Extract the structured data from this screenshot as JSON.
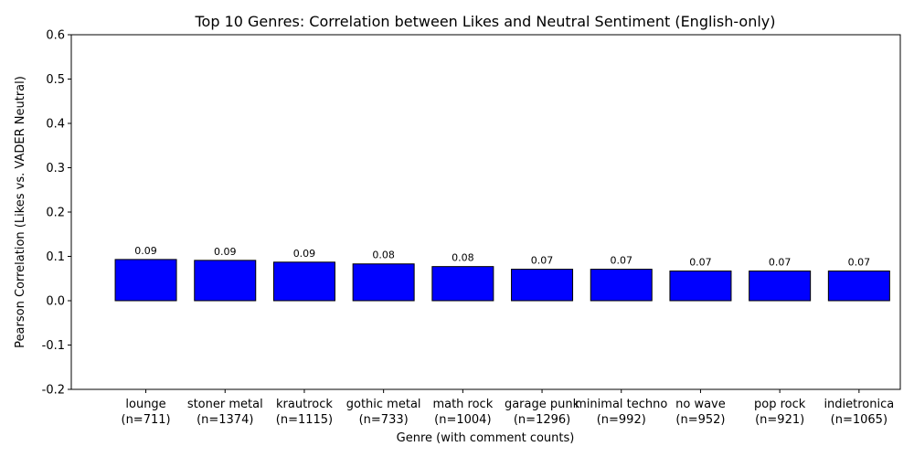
{
  "chart_data": {
    "type": "bar",
    "title": "Top 10 Genres: Correlation between Likes and Neutral Sentiment (English-only)",
    "xlabel": "Genre (with comment counts)",
    "ylabel": "Pearson Correlation (Likes vs. VADER Neutral)",
    "ylim": [
      -0.2,
      0.6
    ],
    "yticks": [
      "-0.2",
      "-0.1",
      "0.0",
      "0.1",
      "0.2",
      "0.3",
      "0.4",
      "0.5",
      "0.6"
    ],
    "categories": [
      {
        "name": "lounge",
        "count": "(n=711)"
      },
      {
        "name": "stoner metal",
        "count": "(n=1374)"
      },
      {
        "name": "krautrock",
        "count": "(n=1115)"
      },
      {
        "name": "gothic metal",
        "count": "(n=733)"
      },
      {
        "name": "math rock",
        "count": "(n=1004)"
      },
      {
        "name": "garage punk",
        "count": "(n=1296)"
      },
      {
        "name": "minimal techno",
        "count": "(n=992)"
      },
      {
        "name": "no wave",
        "count": "(n=952)"
      },
      {
        "name": "pop rock",
        "count": "(n=921)"
      },
      {
        "name": "indietronica",
        "count": "(n=1065)"
      }
    ],
    "values": [
      0.093,
      0.091,
      0.087,
      0.083,
      0.077,
      0.071,
      0.071,
      0.067,
      0.067,
      0.067
    ],
    "value_labels": [
      "0.09",
      "0.09",
      "0.09",
      "0.08",
      "0.08",
      "0.07",
      "0.07",
      "0.07",
      "0.07",
      "0.07"
    ],
    "bar_color": "#0000ff",
    "bar_edge_color": "#000000",
    "grid": false,
    "legend": "none"
  }
}
